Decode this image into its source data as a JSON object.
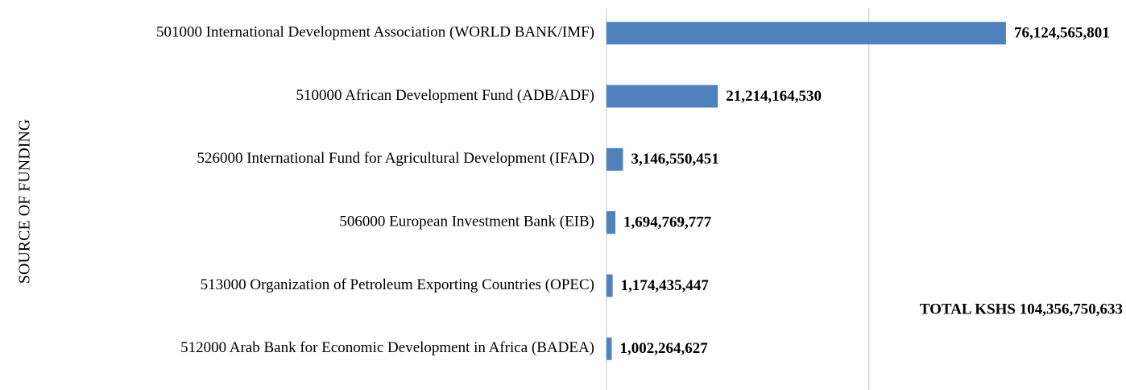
{
  "chart_data": {
    "type": "barh",
    "y_label": "SOURCE OF FUNDING",
    "categories": [
      "501000 International Development Association (WORLD BANK/IMF)",
      "510000 African Development Fund (ADB/ADF)",
      "526000 International Fund for Agricultural Development (IFAD)",
      "506000 European Investment Bank (EIB)",
      "513000 Organization of Petroleum Exporting Countries (OPEC)",
      "512000 Arab Bank for Economic Development in Africa (BADEA)"
    ],
    "values": [
      76124565801,
      21214164530,
      3146550451,
      1694769777,
      1174435447,
      1002264627
    ],
    "value_labels": [
      "76,124,565,801",
      "21,214,164,530",
      "3,146,550,451",
      "1,694,769,777",
      "1,174,435,447",
      "1,002,264,627"
    ],
    "color": "#4f81bd",
    "xlim": [
      0,
      99000000000
    ],
    "xticks": [
      0,
      50000000000
    ],
    "grid": true,
    "annotation": "TOTAL KSHS 104,356,750,633"
  }
}
